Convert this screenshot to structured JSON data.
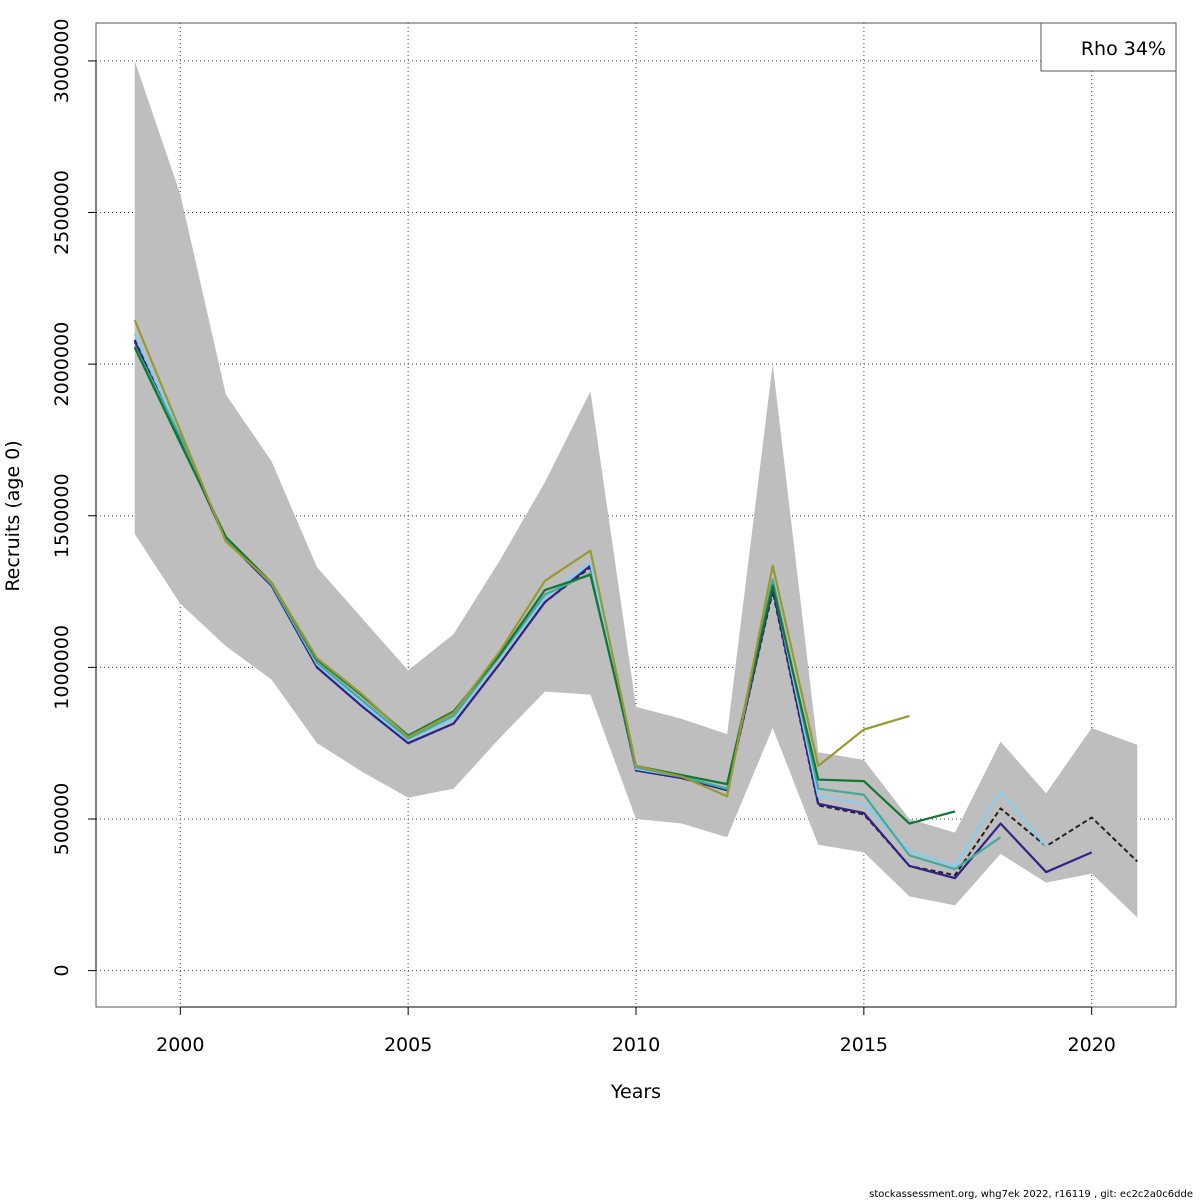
{
  "chart_data": {
    "type": "line",
    "title": "",
    "xlabel": "Years",
    "ylabel": "Recruits (age 0)",
    "xlim": [
      1998.15,
      2021.85
    ],
    "ylim": [
      -120000,
      3125000
    ],
    "x_ticks": [
      2000,
      2005,
      2010,
      2015,
      2020
    ],
    "y_ticks": [
      0,
      500000,
      1000000,
      1500000,
      2000000,
      2500000,
      3000000
    ],
    "grid": true,
    "legend": {
      "label": "Rho 34%",
      "position": "top-right"
    },
    "footer": "stockassessment.org, whg7ek  2022, r16119 , git: ec2c2a0c6dde",
    "confidence_band": {
      "color": "#bebebe",
      "years": [
        1999,
        2000,
        2001,
        2002,
        2003,
        2004,
        2005,
        2006,
        2007,
        2008,
        2009,
        2010,
        2011,
        2012,
        2013,
        2014,
        2015,
        2016,
        2017,
        2018,
        2019,
        2020,
        2021
      ],
      "upper": [
        3000000,
        2560000,
        1900000,
        1680000,
        1330000,
        1160000,
        990000,
        1110000,
        1350000,
        1610000,
        1910000,
        870000,
        830000,
        780000,
        2000000,
        720000,
        695000,
        500000,
        455000,
        755000,
        585000,
        800000,
        745000
      ],
      "lower": [
        1440000,
        1210000,
        1070000,
        960000,
        750000,
        655000,
        570000,
        600000,
        765000,
        920000,
        910000,
        500000,
        485000,
        440000,
        800000,
        415000,
        390000,
        245000,
        215000,
        385000,
        290000,
        320000,
        175000
      ]
    },
    "series": [
      {
        "color": "#222222",
        "dashed": true,
        "x": [
          1999,
          2000,
          2001,
          2002,
          2003,
          2004,
          2005,
          2006,
          2007,
          2008,
          2009,
          2010,
          2011,
          2012,
          2013,
          2014,
          2015,
          2016,
          2017,
          2018,
          2019,
          2020,
          2021
        ],
        "y": [
          2080000,
          1750000,
          1420000,
          1270000,
          1000000,
          870000,
          750000,
          815000,
          1010000,
          1215000,
          1330000,
          660000,
          635000,
          595000,
          1250000,
          545000,
          515000,
          345000,
          315000,
          535000,
          410000,
          505000,
          360000
        ]
      },
      {
        "color": "#332288",
        "x": [
          1999,
          2000,
          2001,
          2002,
          2003,
          2004,
          2005,
          2006,
          2007,
          2008,
          2009,
          2010,
          2011,
          2012,
          2013,
          2014,
          2015,
          2016,
          2017,
          2018,
          2019,
          2020
        ],
        "y": [
          2075000,
          1750000,
          1420000,
          1270000,
          1000000,
          870000,
          750000,
          815000,
          1010000,
          1215000,
          1335000,
          660000,
          635000,
          595000,
          1260000,
          550000,
          520000,
          345000,
          305000,
          485000,
          325000,
          390000
        ]
      },
      {
        "color": "#88ccee",
        "x": [
          1999,
          2000,
          2001,
          2002,
          2003,
          2004,
          2005,
          2006,
          2007,
          2008,
          2009,
          2010,
          2011,
          2012,
          2013,
          2014,
          2015,
          2016,
          2017,
          2018,
          2019
        ],
        "y": [
          2100000,
          1770000,
          1425000,
          1275000,
          1010000,
          880000,
          760000,
          830000,
          1030000,
          1230000,
          1345000,
          665000,
          640000,
          600000,
          1280000,
          575000,
          550000,
          395000,
          345000,
          590000,
          410000
        ]
      },
      {
        "color": "#44aa99",
        "x": [
          1999,
          2000,
          2001,
          2002,
          2003,
          2004,
          2005,
          2006,
          2007,
          2008,
          2009,
          2010,
          2011,
          2012,
          2013,
          2014,
          2015,
          2016,
          2017,
          2018
        ],
        "y": [
          2060000,
          1760000,
          1425000,
          1275000,
          1015000,
          890000,
          765000,
          840000,
          1035000,
          1240000,
          1310000,
          670000,
          640000,
          600000,
          1290000,
          600000,
          580000,
          380000,
          335000,
          440000
        ]
      },
      {
        "color": "#117733",
        "x": [
          1999,
          2000,
          2001,
          2002,
          2003,
          2004,
          2005,
          2006,
          2007,
          2008,
          2009,
          2010,
          2011,
          2012,
          2013,
          2014,
          2015,
          2016,
          2017
        ],
        "y": [
          2055000,
          1740000,
          1430000,
          1280000,
          1025000,
          905000,
          775000,
          855000,
          1040000,
          1255000,
          1305000,
          675000,
          645000,
          615000,
          1270000,
          630000,
          625000,
          485000,
          525000
        ]
      },
      {
        "color": "#999933",
        "x": [
          1999,
          2000,
          2001,
          2002,
          2003,
          2004,
          2005,
          2006,
          2007,
          2008,
          2009,
          2010,
          2011,
          2012,
          2013,
          2014,
          2015,
          2016
        ],
        "y": [
          2145000,
          1780000,
          1415000,
          1280000,
          1030000,
          910000,
          770000,
          850000,
          1050000,
          1285000,
          1385000,
          675000,
          640000,
          575000,
          1335000,
          675000,
          795000,
          840000
        ]
      }
    ]
  }
}
